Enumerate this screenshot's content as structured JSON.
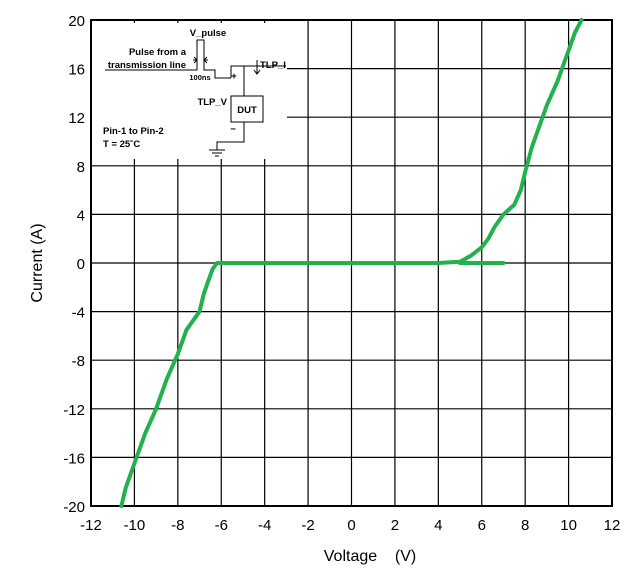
{
  "chart_data": {
    "type": "line",
    "xlabel": "Voltage    (V)",
    "ylabel": "Current (A)",
    "xlim": [
      -12,
      12
    ],
    "ylim": [
      -20,
      20
    ],
    "x_ticks": [
      "-12",
      "-10",
      "-8",
      "-6",
      "-4",
      "-2",
      "0",
      "2",
      "4",
      "6",
      "8",
      "10",
      "12"
    ],
    "y_ticks": [
      "20",
      "16",
      "12",
      "8",
      "4",
      "0",
      "-4",
      "-8",
      "-12",
      "-16",
      "-20"
    ],
    "grid": true,
    "line_color": "#22b14c",
    "series": [
      {
        "points": [
          [
            -10.6,
            -20
          ],
          [
            -10.4,
            -18.5
          ],
          [
            -10.0,
            -16.5
          ],
          [
            -9.5,
            -14.0
          ],
          [
            -9.0,
            -12.0
          ],
          [
            -8.5,
            -9.5
          ],
          [
            -8.0,
            -7.5
          ],
          [
            -7.6,
            -5.5
          ],
          [
            -7.0,
            -4.0
          ],
          [
            -6.8,
            -2.5
          ],
          [
            -6.6,
            -1.5
          ],
          [
            -6.4,
            -0.5
          ],
          [
            -6.2,
            0.0
          ],
          [
            -6.0,
            0.0
          ],
          [
            -4.0,
            0.0
          ],
          [
            -2.0,
            0.0
          ],
          [
            0.0,
            0.0
          ],
          [
            2.0,
            0.0
          ],
          [
            4.0,
            0.0
          ],
          [
            5.0,
            0.1
          ],
          [
            5.5,
            0.6
          ],
          [
            6.0,
            1.3
          ],
          [
            6.3,
            2.0
          ],
          [
            6.6,
            3.0
          ],
          [
            7.0,
            4.0
          ],
          [
            7.5,
            4.8
          ],
          [
            7.8,
            6.0
          ],
          [
            8.0,
            7.5
          ],
          [
            8.3,
            9.5
          ],
          [
            8.7,
            11.5
          ],
          [
            9.0,
            13.0
          ],
          [
            9.5,
            15.0
          ],
          [
            9.8,
            16.5
          ],
          [
            10.0,
            17.5
          ],
          [
            10.3,
            19.0
          ],
          [
            10.6,
            20.0
          ]
        ]
      }
    ],
    "reference_line": {
      "x": [
        5.0,
        7.0
      ],
      "y": [
        0.0,
        0.0
      ]
    },
    "inset": {
      "v_pulse": "V_pulse",
      "pulse_line1": "Pulse from a",
      "pulse_line2": "transmission line",
      "width_label": "100ns",
      "tlp_i": "TLP_I",
      "tlp_v": "TLP_V",
      "dut": "DUT",
      "plus": "+",
      "minus": "−",
      "pin_label": "Pin-1 to Pin-2",
      "temp_label": "T = 25˚C"
    }
  }
}
